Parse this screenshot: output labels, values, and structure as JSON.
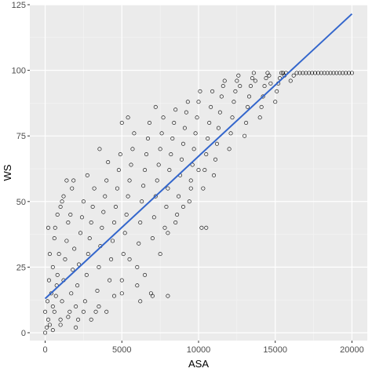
{
  "chart_data": {
    "type": "scatter",
    "title": "",
    "xlabel": "ASA",
    "ylabel": "WS",
    "xlim": [
      -1000,
      21000
    ],
    "ylim": [
      -3,
      125
    ],
    "x_ticks": [
      0,
      5000,
      10000,
      15000,
      20000
    ],
    "x_tick_labels": [
      "0",
      "5000",
      "10000",
      "15000",
      "20000"
    ],
    "y_ticks": [
      0,
      25,
      50,
      75,
      100,
      125
    ],
    "y_tick_labels": [
      "0",
      "25",
      "50",
      "75",
      "100",
      "125"
    ],
    "grid": true,
    "regression_line": {
      "x": [
        0,
        20000
      ],
      "y": [
        13,
        121.5
      ]
    },
    "series": [
      {
        "marker": "open-circle",
        "points": [
          [
            0,
            0
          ],
          [
            100,
            2
          ],
          [
            200,
            5
          ],
          [
            0,
            8
          ],
          [
            300,
            3
          ],
          [
            150,
            12
          ],
          [
            400,
            15
          ],
          [
            250,
            20
          ],
          [
            500,
            1
          ],
          [
            600,
            8
          ],
          [
            700,
            14
          ],
          [
            800,
            22
          ],
          [
            900,
            30
          ],
          [
            500,
            25
          ],
          [
            650,
            40
          ],
          [
            750,
            18
          ],
          [
            1000,
            5
          ],
          [
            1100,
            12
          ],
          [
            1200,
            20
          ],
          [
            1300,
            28
          ],
          [
            1400,
            35
          ],
          [
            1500,
            42
          ],
          [
            1000,
            48
          ],
          [
            1200,
            52
          ],
          [
            1600,
            8
          ],
          [
            1700,
            15
          ],
          [
            1800,
            24
          ],
          [
            1900,
            32
          ],
          [
            1650,
            45
          ],
          [
            1750,
            55
          ],
          [
            1850,
            58
          ],
          [
            2000,
            10
          ],
          [
            2100,
            18
          ],
          [
            2200,
            26
          ],
          [
            2300,
            38
          ],
          [
            2400,
            44
          ],
          [
            2500,
            50
          ],
          [
            2150,
            5
          ],
          [
            2600,
            12
          ],
          [
            2700,
            22
          ],
          [
            2800,
            30
          ],
          [
            2900,
            36
          ],
          [
            3000,
            42
          ],
          [
            3100,
            48
          ],
          [
            3200,
            55
          ],
          [
            2750,
            60
          ],
          [
            3300,
            8
          ],
          [
            3400,
            16
          ],
          [
            3500,
            25
          ],
          [
            3600,
            33
          ],
          [
            3700,
            40
          ],
          [
            3800,
            46
          ],
          [
            3900,
            52
          ],
          [
            4000,
            58
          ],
          [
            4100,
            65
          ],
          [
            3550,
            70
          ],
          [
            4200,
            20
          ],
          [
            4300,
            28
          ],
          [
            4400,
            35
          ],
          [
            4500,
            42
          ],
          [
            4600,
            48
          ],
          [
            4700,
            55
          ],
          [
            4800,
            62
          ],
          [
            4900,
            68
          ],
          [
            5000,
            15
          ],
          [
            5100,
            30
          ],
          [
            5200,
            38
          ],
          [
            5300,
            45
          ],
          [
            5400,
            52
          ],
          [
            5500,
            58
          ],
          [
            5600,
            64
          ],
          [
            5700,
            70
          ],
          [
            5800,
            76
          ],
          [
            5000,
            80
          ],
          [
            5400,
            82
          ],
          [
            6000,
            25
          ],
          [
            6100,
            34
          ],
          [
            6200,
            42
          ],
          [
            6300,
            50
          ],
          [
            6400,
            56
          ],
          [
            6500,
            62
          ],
          [
            6600,
            68
          ],
          [
            6700,
            74
          ],
          [
            6800,
            80
          ],
          [
            6200,
            12
          ],
          [
            6900,
            15
          ],
          [
            7000,
            36
          ],
          [
            7100,
            44
          ],
          [
            7200,
            52
          ],
          [
            7300,
            58
          ],
          [
            7400,
            64
          ],
          [
            7500,
            70
          ],
          [
            7600,
            76
          ],
          [
            7700,
            82
          ],
          [
            7200,
            86
          ],
          [
            7800,
            40
          ],
          [
            7900,
            48
          ],
          [
            8000,
            55
          ],
          [
            8100,
            62
          ],
          [
            8200,
            68
          ],
          [
            8300,
            74
          ],
          [
            8400,
            80
          ],
          [
            8500,
            85
          ],
          [
            8000,
            14
          ],
          [
            8600,
            45
          ],
          [
            8700,
            52
          ],
          [
            8800,
            60
          ],
          [
            8900,
            66
          ],
          [
            9000,
            72
          ],
          [
            9100,
            78
          ],
          [
            9200,
            84
          ],
          [
            9300,
            88
          ],
          [
            9400,
            50
          ],
          [
            9500,
            58
          ],
          [
            9600,
            64
          ],
          [
            9700,
            70
          ],
          [
            9800,
            76
          ],
          [
            9900,
            82
          ],
          [
            10000,
            88
          ],
          [
            10100,
            92
          ],
          [
            10200,
            40
          ],
          [
            10300,
            55
          ],
          [
            10400,
            62
          ],
          [
            10500,
            68
          ],
          [
            10600,
            74
          ],
          [
            10700,
            80
          ],
          [
            10800,
            86
          ],
          [
            10900,
            92
          ],
          [
            11000,
            60
          ],
          [
            11100,
            66
          ],
          [
            11200,
            72
          ],
          [
            11300,
            78
          ],
          [
            11400,
            84
          ],
          [
            11500,
            90
          ],
          [
            11600,
            94
          ],
          [
            11700,
            96
          ],
          [
            12000,
            70
          ],
          [
            12100,
            76
          ],
          [
            12200,
            82
          ],
          [
            12300,
            88
          ],
          [
            12400,
            92
          ],
          [
            12500,
            96
          ],
          [
            12600,
            98
          ],
          [
            12700,
            94
          ],
          [
            13000,
            75
          ],
          [
            13100,
            80
          ],
          [
            13200,
            86
          ],
          [
            13300,
            90
          ],
          [
            13400,
            94
          ],
          [
            13500,
            97
          ],
          [
            13600,
            99
          ],
          [
            13700,
            96
          ],
          [
            14000,
            82
          ],
          [
            14100,
            86
          ],
          [
            14200,
            90
          ],
          [
            14300,
            94
          ],
          [
            14400,
            97
          ],
          [
            14500,
            99
          ],
          [
            14600,
            98
          ],
          [
            14700,
            95
          ],
          [
            15000,
            88
          ],
          [
            15100,
            92
          ],
          [
            15200,
            95
          ],
          [
            15300,
            97
          ],
          [
            15400,
            99
          ],
          [
            15500,
            99
          ],
          [
            15600,
            98
          ],
          [
            15700,
            99
          ],
          [
            16000,
            96
          ],
          [
            16200,
            98
          ],
          [
            16400,
            99
          ],
          [
            16600,
            99
          ],
          [
            16800,
            99
          ],
          [
            17000,
            99
          ],
          [
            17200,
            99
          ],
          [
            17400,
            99
          ],
          [
            17600,
            99
          ],
          [
            17800,
            99
          ],
          [
            18000,
            99
          ],
          [
            18200,
            99
          ],
          [
            18400,
            99
          ],
          [
            18600,
            99
          ],
          [
            18800,
            99
          ],
          [
            19000,
            99
          ],
          [
            19200,
            99
          ],
          [
            19400,
            99
          ],
          [
            19600,
            99
          ],
          [
            19800,
            99
          ],
          [
            20000,
            99
          ],
          [
            3000,
            5
          ],
          [
            3500,
            10
          ],
          [
            4000,
            8
          ],
          [
            4500,
            14
          ],
          [
            5000,
            20
          ],
          [
            5500,
            28
          ],
          [
            6000,
            18
          ],
          [
            6500,
            22
          ],
          [
            7000,
            14
          ],
          [
            7500,
            30
          ],
          [
            8000,
            38
          ],
          [
            8500,
            42
          ],
          [
            9000,
            48
          ],
          [
            9500,
            55
          ],
          [
            10000,
            62
          ],
          [
            10500,
            40
          ],
          [
            500,
            10
          ],
          [
            1000,
            3
          ],
          [
            1500,
            6
          ],
          [
            2000,
            2
          ],
          [
            2500,
            8
          ],
          [
            800,
            45
          ],
          [
            1100,
            50
          ],
          [
            1400,
            58
          ],
          [
            300,
            30
          ],
          [
            600,
            36
          ],
          [
            200,
            40
          ]
        ]
      }
    ]
  }
}
